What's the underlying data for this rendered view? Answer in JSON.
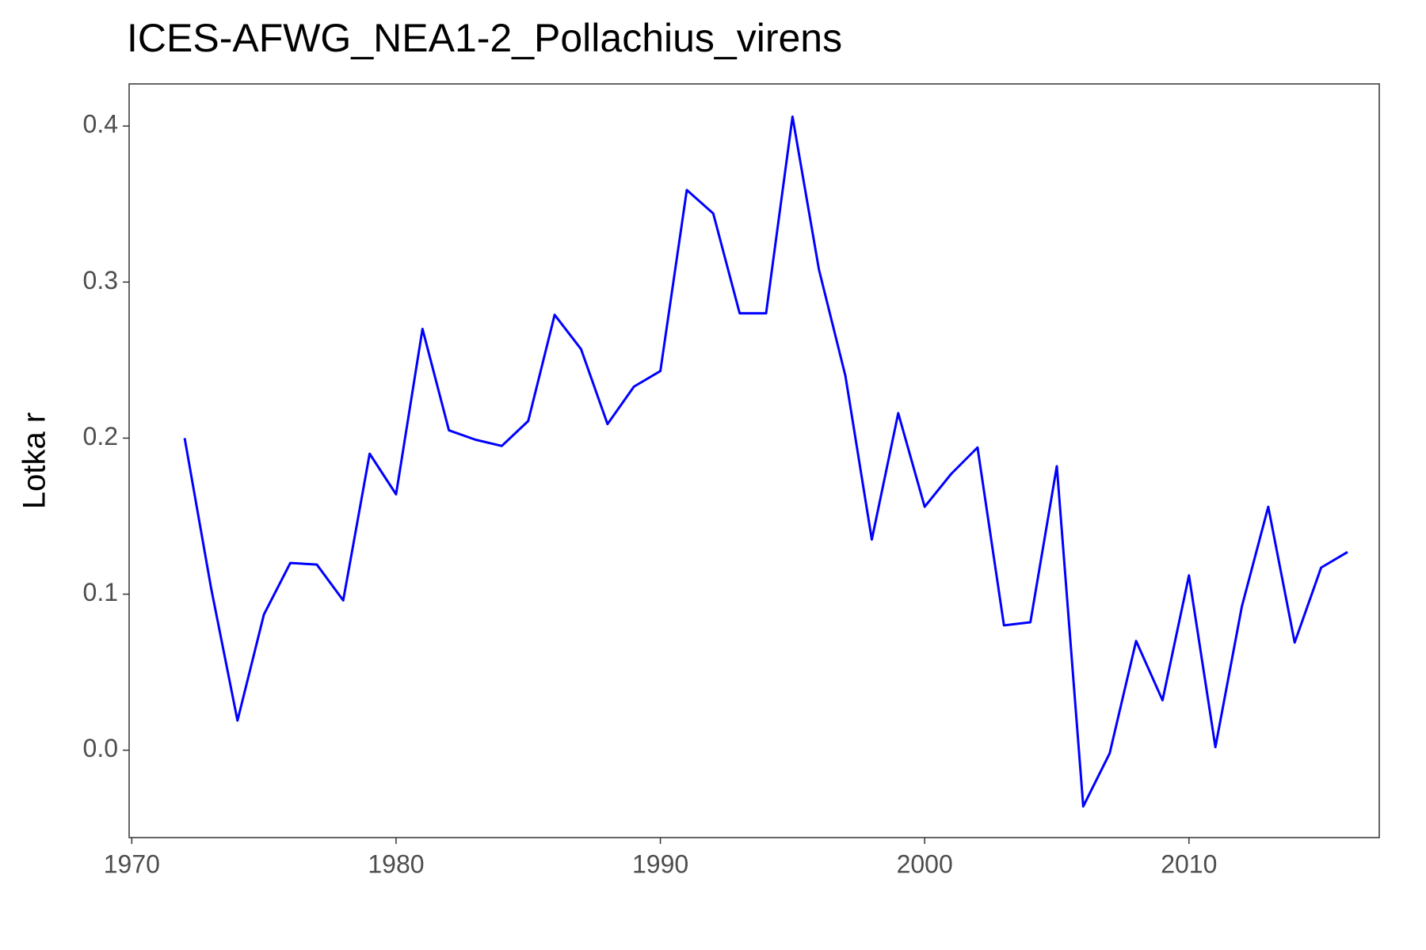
{
  "chart_data": {
    "type": "line",
    "title": "ICES-AFWG_NEA1-2_Pollachius_virens",
    "y_label": "Lotka r",
    "x": [
      1972,
      1973,
      1974,
      1975,
      1976,
      1977,
      1978,
      1979,
      1980,
      1981,
      1982,
      1983,
      1984,
      1985,
      1986,
      1987,
      1988,
      1989,
      1990,
      1991,
      1992,
      1993,
      1994,
      1995,
      1996,
      1997,
      1998,
      1999,
      2000,
      2001,
      2002,
      2003,
      2004,
      2005,
      2006,
      2007,
      2008,
      2009,
      2010,
      2011,
      2012,
      2013,
      2014,
      2015,
      2016
    ],
    "series": [
      {
        "color": "#0000ff",
        "values": [
          0.2,
          0.104,
          0.019,
          0.087,
          0.12,
          0.119,
          0.096,
          0.19,
          0.164,
          0.27,
          0.205,
          0.199,
          0.195,
          0.211,
          0.279,
          0.257,
          0.209,
          0.233,
          0.243,
          0.359,
          0.344,
          0.28,
          0.28,
          0.406,
          0.308,
          0.24,
          0.135,
          0.216,
          0.156,
          0.177,
          0.194,
          0.08,
          0.082,
          0.182,
          -0.036,
          -0.002,
          0.07,
          0.032,
          0.112,
          0.002,
          0.092,
          0.156,
          0.069,
          0.117,
          0.127
        ]
      }
    ],
    "xlim": [
      1969.9,
      2017.2
    ],
    "ylim": [
      -0.056,
      0.427
    ],
    "xticks": [
      1970,
      1980,
      1990,
      2000,
      2010
    ],
    "yticks": [
      {
        "value": 0,
        "label": "0.0"
      },
      0.1,
      0.2,
      0.3,
      0.4
    ]
  }
}
